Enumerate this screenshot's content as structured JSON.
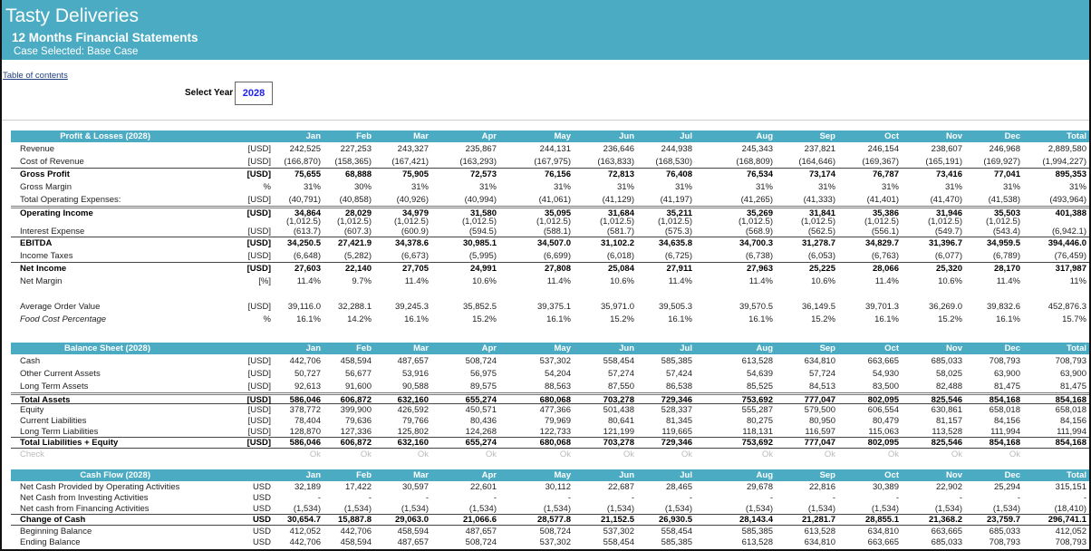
{
  "header": {
    "title": "Tasty Deliveries",
    "subtitle": "12 Months Financial Statements",
    "case": "Case Selected: Base Case"
  },
  "toc_link": "Table of contents",
  "year_selector": {
    "label": "Select Year",
    "value": "2028"
  },
  "columns": [
    "Jan",
    "Feb",
    "Mar",
    "Apr",
    "May",
    "Jun",
    "Jul",
    "Aug",
    "Sep",
    "Oct",
    "Nov",
    "Dec",
    "Total"
  ],
  "sections": [
    {
      "title": "Profit & Losses (2028)",
      "rows": [
        {
          "label": "Revenue",
          "unit": "[USD]",
          "values": [
            "242,525",
            "227,253",
            "243,327",
            "235,867",
            "244,131",
            "236,646",
            "244,938",
            "245,343",
            "237,821",
            "246,154",
            "238,607",
            "246,968",
            "2,889,580"
          ]
        },
        {
          "label": "Cost of Revenue",
          "unit": "[USD]",
          "values": [
            "(166,870)",
            "(158,365)",
            "(167,421)",
            "(163,293)",
            "(167,975)",
            "(163,833)",
            "(168,530)",
            "(168,809)",
            "(164,646)",
            "(169,367)",
            "(165,191)",
            "(169,927)",
            "(1,994,227)"
          ]
        },
        {
          "label": "Gross Profit",
          "unit": "[USD]",
          "style": "b bt",
          "values": [
            "75,655",
            "68,888",
            "75,905",
            "72,573",
            "76,156",
            "72,813",
            "76,408",
            "76,534",
            "73,174",
            "76,787",
            "73,416",
            "77,041",
            "895,353"
          ]
        },
        {
          "label": "Gross Margin",
          "unit": "%",
          "values": [
            "31%",
            "30%",
            "31%",
            "31%",
            "31%",
            "31%",
            "31%",
            "31%",
            "31%",
            "31%",
            "31%",
            "31%",
            "31%"
          ]
        },
        {
          "label": "Total Operating Expenses:",
          "unit": "[USD]",
          "values": [
            "(40,791)",
            "(40,858)",
            "(40,926)",
            "(40,994)",
            "(41,061)",
            "(41,129)",
            "(41,197)",
            "(41,265)",
            "(41,333)",
            "(41,401)",
            "(41,470)",
            "(41,538)",
            "(493,964)"
          ]
        },
        {
          "label": "Operating Income",
          "unit": "[USD]",
          "style": "b dt",
          "h": 12,
          "values": [
            "34,864",
            "28,029",
            "34,979",
            "31,580",
            "35,095",
            "31,684",
            "35,211",
            "35,269",
            "31,841",
            "35,386",
            "31,946",
            "35,503",
            "401,388"
          ]
        },
        {
          "label": "",
          "unit": "",
          "h": 10,
          "values": [
            "(1,012.5)",
            "(1,012.5)",
            "(1,012.5)",
            "(1,012.5)",
            "(1,012.5)",
            "(1,012.5)",
            "(1,012.5)",
            "(1,012.5)",
            "(1,012.5)",
            "(1,012.5)",
            "(1,012.5)",
            "(1,012.5)",
            ""
          ]
        },
        {
          "label": "Interest Expense",
          "unit": "[USD]",
          "h": 12,
          "values": [
            "(613.7)",
            "(607.3)",
            "(600.9)",
            "(594.5)",
            "(588.1)",
            "(581.7)",
            "(575.3)",
            "(568.9)",
            "(562.5)",
            "(556.1)",
            "(549.7)",
            "(543.4)",
            "(6,942.1)"
          ]
        },
        {
          "label": "EBITDA",
          "unit": "[USD]",
          "style": "b bt",
          "values": [
            "34,250.5",
            "27,421.9",
            "34,378.6",
            "30,985.1",
            "34,507.0",
            "31,102.2",
            "34,635.8",
            "34,700.3",
            "31,278.7",
            "34,829.7",
            "31,396.7",
            "34,959.5",
            "394,446.0"
          ]
        },
        {
          "label": "Income Taxes",
          "unit": "[USD]",
          "values": [
            "(6,648)",
            "(5,282)",
            "(6,673)",
            "(5,995)",
            "(6,699)",
            "(6,018)",
            "(6,725)",
            "(6,738)",
            "(6,053)",
            "(6,763)",
            "(6,077)",
            "(6,789)",
            "(76,459)"
          ]
        },
        {
          "label": "Net Income",
          "unit": "[USD]",
          "style": "b bt",
          "values": [
            "27,603",
            "22,140",
            "27,705",
            "24,991",
            "27,808",
            "25,084",
            "27,911",
            "27,963",
            "25,225",
            "28,066",
            "25,320",
            "28,170",
            "317,987"
          ]
        },
        {
          "label": "Net Margin",
          "unit": "[%]",
          "values": [
            "11.4%",
            "9.7%",
            "11.4%",
            "10.6%",
            "11.4%",
            "10.6%",
            "11.4%",
            "11.4%",
            "10.6%",
            "11.4%",
            "10.6%",
            "11.4%",
            "11%"
          ]
        },
        {
          "label": "",
          "unit": "",
          "values": [
            "",
            "",
            "",
            "",
            "",
            "",
            "",
            "",
            "",
            "",
            "",
            "",
            ""
          ]
        },
        {
          "label": "Average Order Value",
          "unit": "[USD]",
          "values": [
            "39,116.0",
            "32,288.1",
            "39,245.3",
            "35,852.5",
            "39,375.1",
            "35,971.0",
            "39,505.3",
            "39,570.5",
            "36,149.5",
            "39,701.3",
            "36,269.0",
            "39,832.6",
            "452,876.3"
          ]
        },
        {
          "label": "Food Cost Percentage",
          "unit": "%",
          "style": "it",
          "values": [
            "16.1%",
            "14.2%",
            "16.1%",
            "15.2%",
            "16.1%",
            "15.2%",
            "16.1%",
            "16.1%",
            "15.2%",
            "16.1%",
            "15.2%",
            "16.1%",
            "15.7%"
          ]
        }
      ]
    },
    {
      "title": "Balance Sheet (2028)",
      "rows": [
        {
          "label": "Cash",
          "unit": "[USD]",
          "values": [
            "442,706",
            "458,594",
            "487,657",
            "508,724",
            "537,302",
            "558,454",
            "585,385",
            "613,528",
            "634,810",
            "663,665",
            "685,033",
            "708,793",
            "708,793"
          ]
        },
        {
          "label": "Other Current Assets",
          "unit": "[USD]",
          "values": [
            "50,727",
            "56,677",
            "53,916",
            "56,975",
            "54,204",
            "57,274",
            "57,424",
            "54,639",
            "57,724",
            "54,930",
            "58,025",
            "63,900",
            "63,900"
          ]
        },
        {
          "label": "Long Term Assets",
          "unit": "[USD]",
          "values": [
            "92,613",
            "91,600",
            "90,588",
            "89,575",
            "88,563",
            "87,550",
            "86,538",
            "85,525",
            "84,513",
            "83,500",
            "82,488",
            "81,475",
            "81,475"
          ]
        },
        {
          "label": "Total Assets",
          "unit": "[USD]",
          "style": "b dt",
          "h": 12,
          "values": [
            "586,046",
            "606,872",
            "632,160",
            "655,274",
            "680,068",
            "703,278",
            "729,346",
            "753,692",
            "777,047",
            "802,095",
            "825,546",
            "854,168",
            "854,168"
          ]
        },
        {
          "label": "Equity",
          "unit": "[USD]",
          "style": "bt",
          "h": 13,
          "values": [
            "378,772",
            "399,900",
            "426,592",
            "450,571",
            "477,366",
            "501,438",
            "528,337",
            "555,287",
            "579,500",
            "606,554",
            "630,861",
            "658,018",
            "658,018"
          ]
        },
        {
          "label": "Current Liabilities",
          "unit": "[USD]",
          "h": 12,
          "values": [
            "78,404",
            "79,636",
            "79,766",
            "80,436",
            "79,969",
            "80,641",
            "81,345",
            "80,275",
            "80,950",
            "80,479",
            "81,157",
            "84,156",
            "84,156"
          ]
        },
        {
          "label": "Long Term Liabilities",
          "unit": "[USD]",
          "h": 12,
          "values": [
            "128,870",
            "127,336",
            "125,802",
            "124,268",
            "122,733",
            "121,199",
            "119,665",
            "118,131",
            "116,597",
            "115,063",
            "113,528",
            "111,994",
            "111,994"
          ]
        },
        {
          "label": "Total Liabilities + Equity",
          "unit": "[USD]",
          "style": "b bt bb",
          "h": 13,
          "values": [
            "586,046",
            "606,872",
            "632,160",
            "655,274",
            "680,068",
            "703,278",
            "729,346",
            "753,692",
            "777,047",
            "802,095",
            "825,546",
            "854,168",
            "854,168"
          ]
        },
        {
          "label": "Check",
          "unit": "",
          "style": "grey",
          "h": 12,
          "values": [
            "Ok",
            "Ok",
            "Ok",
            "Ok",
            "Ok",
            "Ok",
            "Ok",
            "Ok",
            "Ok",
            "Ok",
            "Ok",
            "Ok",
            ""
          ]
        }
      ]
    },
    {
      "title": "Cash Flow (2028)",
      "rows": [
        {
          "label": "Net Cash Provided by Operating Activities",
          "unit": "USD",
          "h": 12,
          "values": [
            "32,189",
            "17,422",
            "30,597",
            "22,601",
            "30,112",
            "22,687",
            "28,465",
            "29,678",
            "22,816",
            "30,389",
            "22,902",
            "25,294",
            "315,151"
          ]
        },
        {
          "label": "Net Cash from Investing Activities",
          "unit": "USD",
          "h": 12,
          "values": [
            "-",
            "-",
            "-",
            "-",
            "-",
            "-",
            "-",
            "-",
            "-",
            "-",
            "-",
            "-",
            "-"
          ]
        },
        {
          "label": "Net cash from Financing Activities",
          "unit": "USD",
          "h": 12,
          "values": [
            "(1,534)",
            "(1,534)",
            "(1,534)",
            "(1,534)",
            "(1,534)",
            "(1,534)",
            "(1,534)",
            "(1,534)",
            "(1,534)",
            "(1,534)",
            "(1,534)",
            "(1,534)",
            "(18,410)"
          ]
        },
        {
          "label": "Change of Cash",
          "unit": "USD",
          "style": "b bt bb",
          "h": 13,
          "values": [
            "30,654.7",
            "15,887.8",
            "29,063.0",
            "21,066.6",
            "28,577.8",
            "21,152.5",
            "26,930.5",
            "28,143.4",
            "21,281.7",
            "28,855.1",
            "21,368.2",
            "23,759.7",
            "296,741.1"
          ]
        },
        {
          "label": "Beginning Balance",
          "unit": "USD",
          "h": 12,
          "values": [
            "412,052",
            "442,706",
            "458,594",
            "487,657",
            "508,724",
            "537,302",
            "558,454",
            "585,385",
            "613,528",
            "634,810",
            "663,665",
            "685,033",
            "412,052"
          ]
        },
        {
          "label": "Ending Balance",
          "unit": "USD",
          "h": 12,
          "values": [
            "442,706",
            "458,594",
            "487,657",
            "508,724",
            "537,302",
            "558,454",
            "585,385",
            "613,528",
            "634,810",
            "663,665",
            "685,033",
            "708,793",
            "708,793"
          ]
        }
      ]
    }
  ],
  "colors": {
    "accent": "#4aabc3",
    "year_value": "#2020ee"
  }
}
